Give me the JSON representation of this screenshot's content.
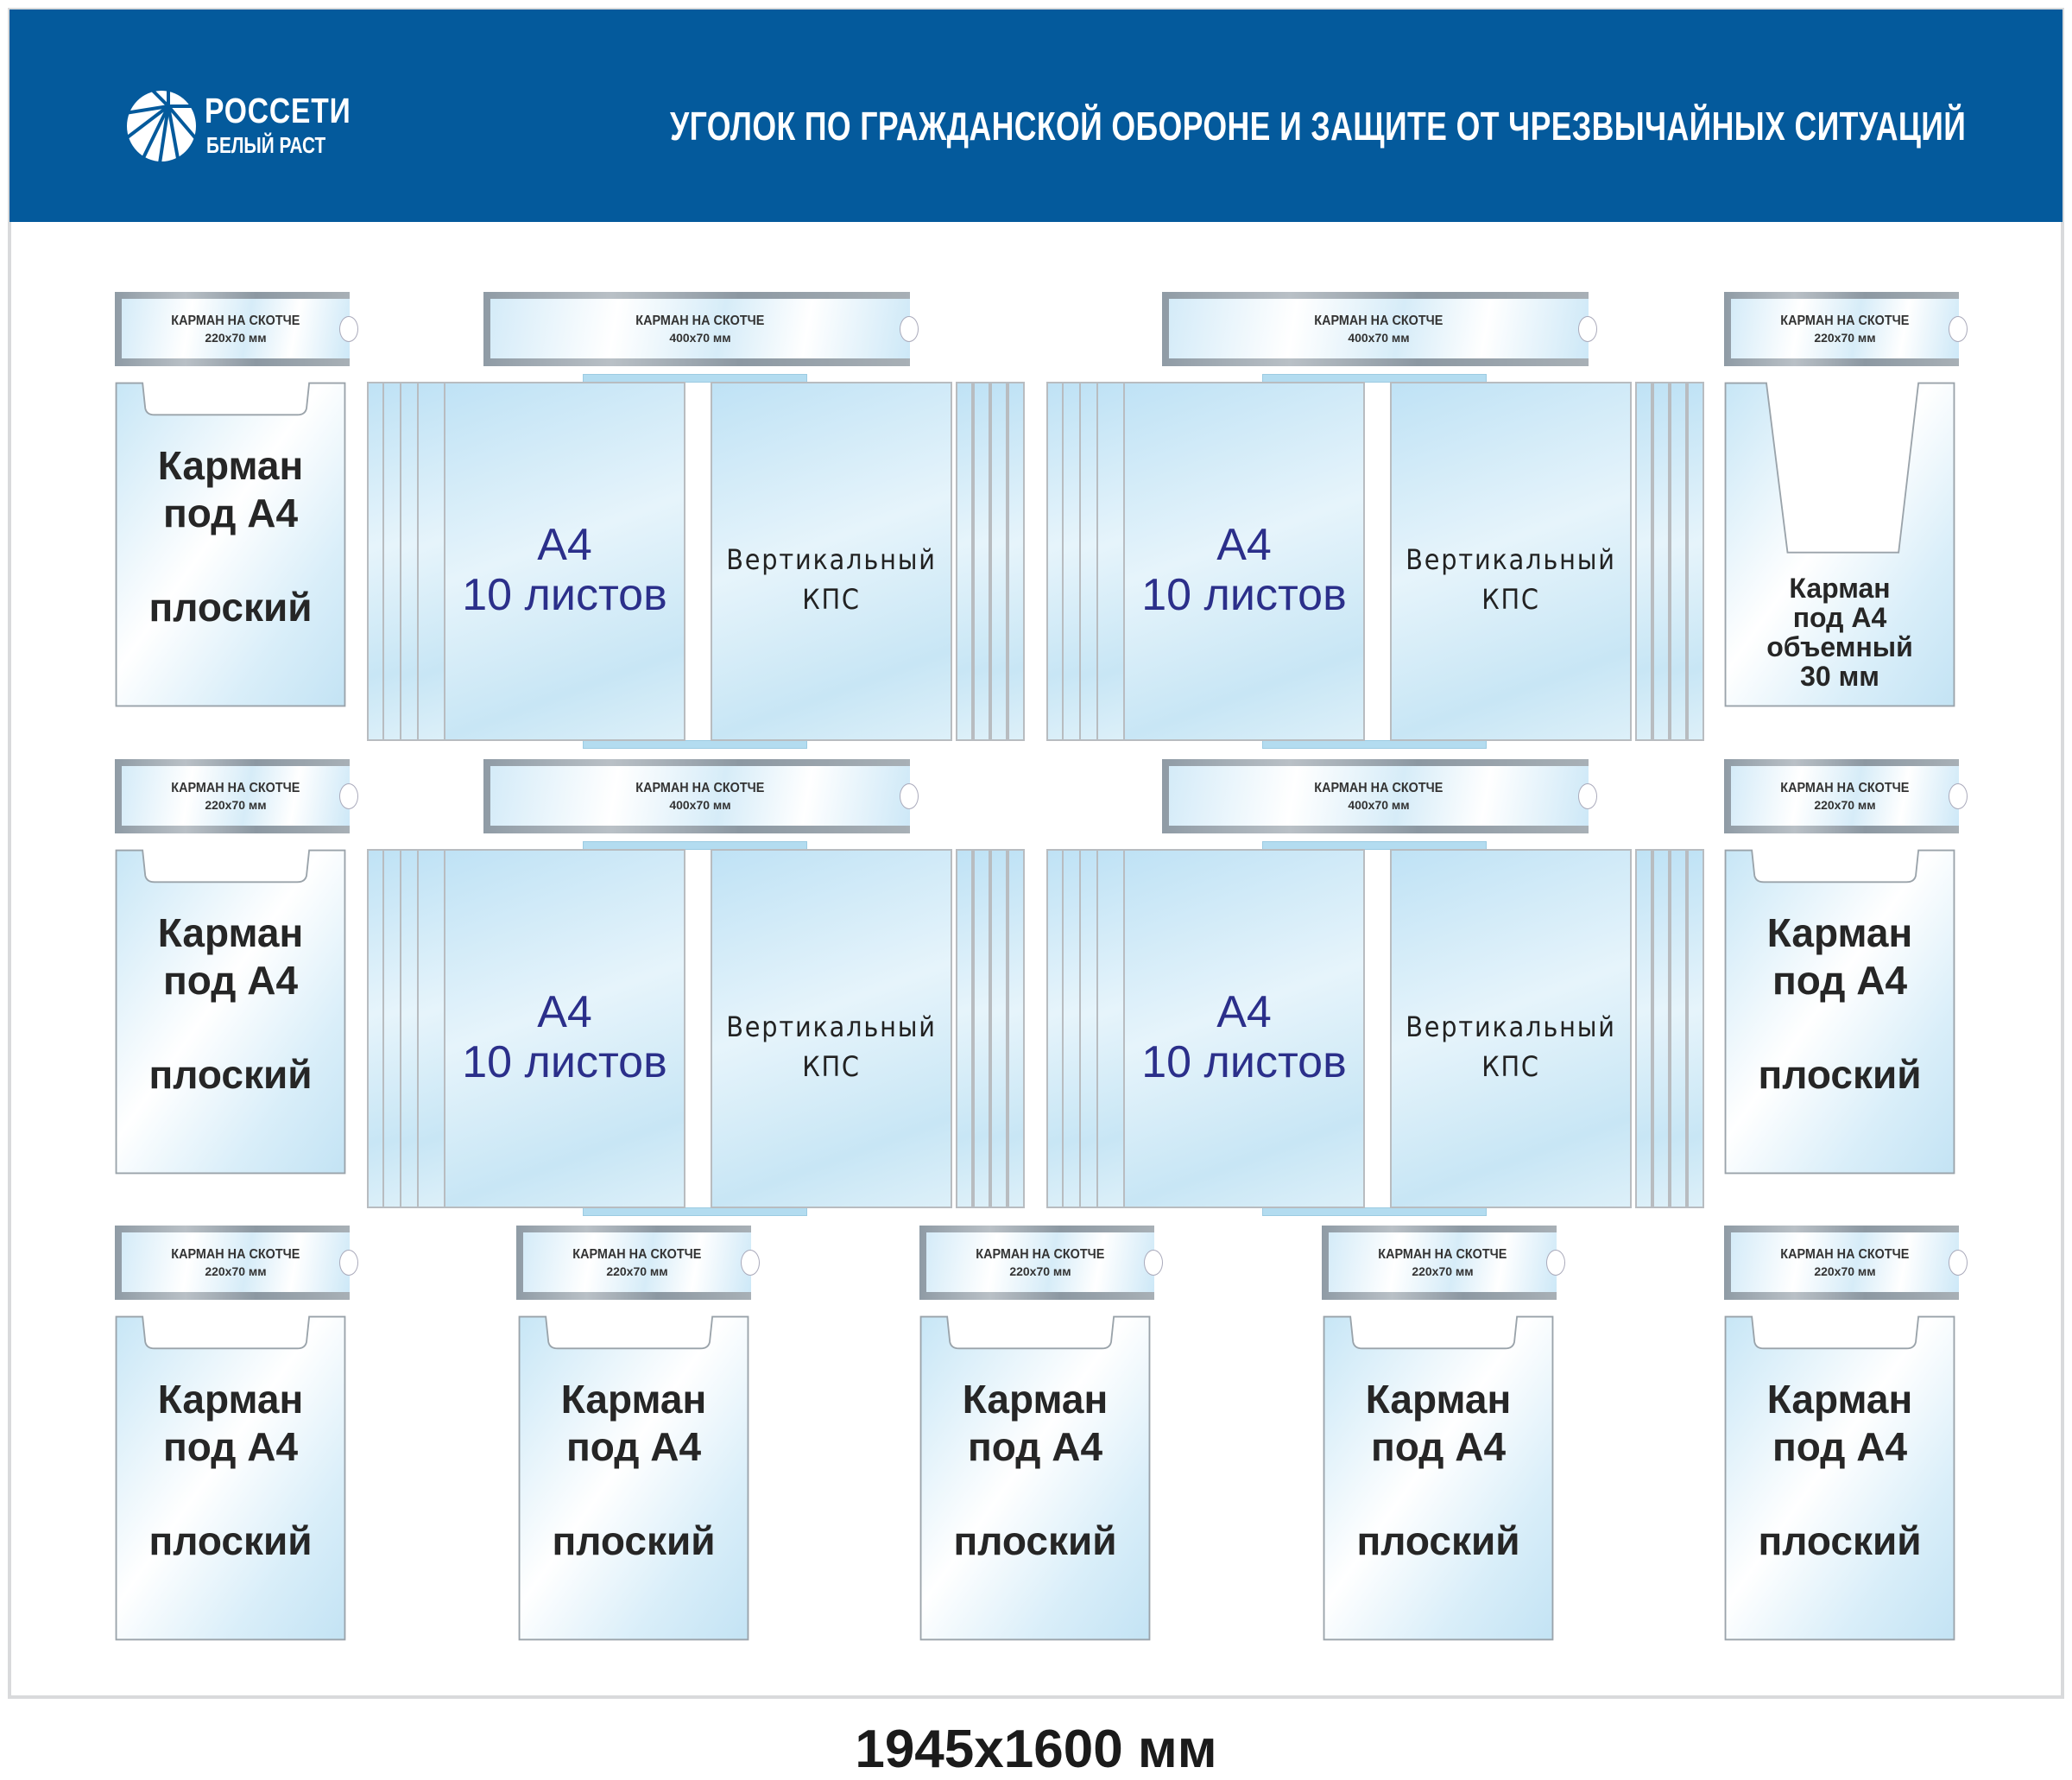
{
  "header": {
    "logo": {
      "name": "РОССЕТИ",
      "sub": "БЕЛЫЙ РАСТ"
    },
    "title": "УГОЛОК ПО ГРАЖДАНСКОЙ ОБОРОНЕ И ЗАЩИТЕ ОТ ЧРЕЗВЫЧАЙНЫХ СИТУАЦИЙ",
    "color": "#045a9c"
  },
  "labels": [
    {
      "title": "КАРМАН НА СКОТЧЕ",
      "size": "220x70 мм"
    },
    {
      "title": "КАРМАН НА СКОТЧЕ",
      "size": "400x70 мм"
    },
    {
      "title": "КАРМАН НА СКОТЧЕ",
      "size": "400x70 мм"
    },
    {
      "title": "КАРМАН НА СКОТЧЕ",
      "size": "220x70 мм"
    },
    {
      "title": "КАРМАН НА СКОТЧЕ",
      "size": "220x70 мм"
    },
    {
      "title": "КАРМАН НА СКОТЧЕ",
      "size": "400x70 мм"
    },
    {
      "title": "КАРМАН НА СКОТЧЕ",
      "size": "400x70 мм"
    },
    {
      "title": "КАРМАН НА СКОТЧЕ",
      "size": "220x70 мм"
    },
    {
      "title": "КАРМАН НА СКОТЧЕ",
      "size": "220x70 мм"
    },
    {
      "title": "КАРМАН НА СКОТЧЕ",
      "size": "220x70 мм"
    },
    {
      "title": "КАРМАН НА СКОТЧЕ",
      "size": "220x70 мм"
    },
    {
      "title": "КАРМАН НА СКОТЧЕ",
      "size": "220x70 мм"
    },
    {
      "title": "КАРМАН НА СКОТЧЕ",
      "size": "220x70 мм"
    }
  ],
  "pockets": [
    {
      "type": "flat",
      "line1": "Карман",
      "line2": "под А4",
      "line3": "плоский"
    },
    {
      "type": "volume",
      "line1": "Карман",
      "line2": "под А4",
      "line3": "объемный",
      "line4": "30 мм"
    },
    {
      "type": "flat",
      "line1": "Карман",
      "line2": "под А4",
      "line3": "плоский"
    },
    {
      "type": "flat",
      "line1": "Карман",
      "line2": "под А4",
      "line3": "плоский"
    },
    {
      "type": "flat",
      "line1": "Карман",
      "line2": "под А4",
      "line3": "плоский"
    },
    {
      "type": "flat",
      "line1": "Карман",
      "line2": "под А4",
      "line3": "плоский"
    },
    {
      "type": "flat",
      "line1": "Карман",
      "line2": "под А4",
      "line3": "плоский"
    },
    {
      "type": "flat",
      "line1": "Карман",
      "line2": "под А4",
      "line3": "плоский"
    },
    {
      "type": "flat",
      "line1": "Карман",
      "line2": "под А4",
      "line3": "плоский"
    }
  ],
  "kps": [
    {
      "left1": "А4",
      "left2": "10 листов",
      "right1": "Вертикальный",
      "right2": "КПС"
    },
    {
      "left1": "А4",
      "left2": "10 листов",
      "right1": "Вертикальный",
      "right2": "КПС"
    },
    {
      "left1": "А4",
      "left2": "10 листов",
      "right1": "Вертикальный",
      "right2": "КПС"
    },
    {
      "left1": "А4",
      "left2": "10 листов",
      "right1": "Вертикальный",
      "right2": "КПС"
    }
  ],
  "footer": {
    "dimensions": "1945x1600 мм"
  }
}
